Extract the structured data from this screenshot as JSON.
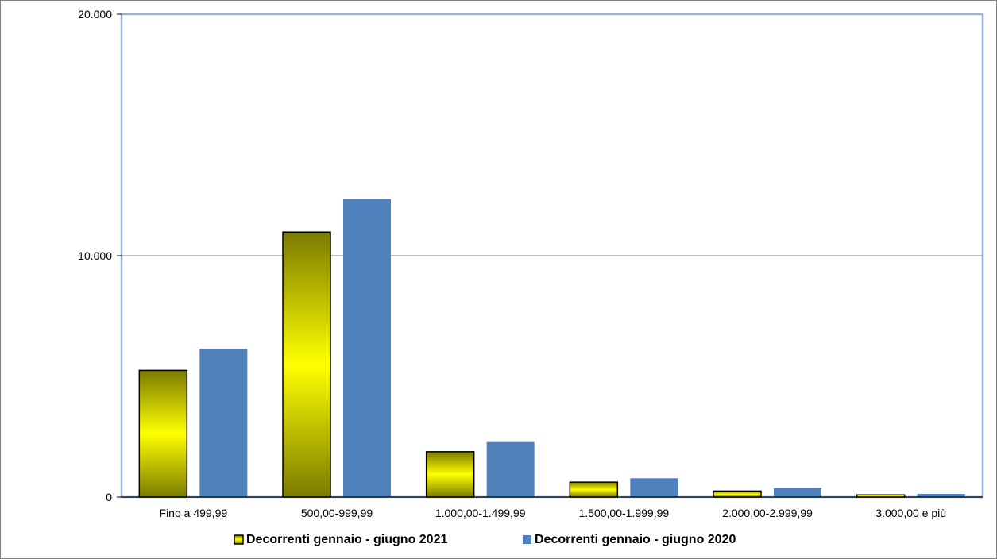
{
  "chart_data": {
    "type": "bar",
    "title": "",
    "xlabel": "",
    "ylabel": "",
    "categories": [
      "Fino a 499,99",
      "500,00-999,99",
      "1.000,00-1.499,99",
      "1.500,00-1.999,99",
      "2.000,00-2.999,99",
      "3.000,00 e più"
    ],
    "series": [
      {
        "name": "Decorrenti gennaio - giugno 2021",
        "values": [
          5250,
          10980,
          1880,
          620,
          250,
          90
        ],
        "color": "#ffff00",
        "shade": "#7b7b00"
      },
      {
        "name": "Decorrenti gennaio - giugno 2020",
        "values": [
          6150,
          12350,
          2280,
          780,
          380,
          130
        ],
        "color": "#4f81bd"
      }
    ],
    "ylim": [
      0,
      20000
    ],
    "yticks": [
      0,
      10000,
      20000
    ],
    "ytick_labels": [
      "0",
      "10.000",
      "20.000"
    ],
    "grid": true,
    "legend_position": "bottom",
    "plot_border_color": "#95b3d7",
    "grid_color": "#868686"
  }
}
